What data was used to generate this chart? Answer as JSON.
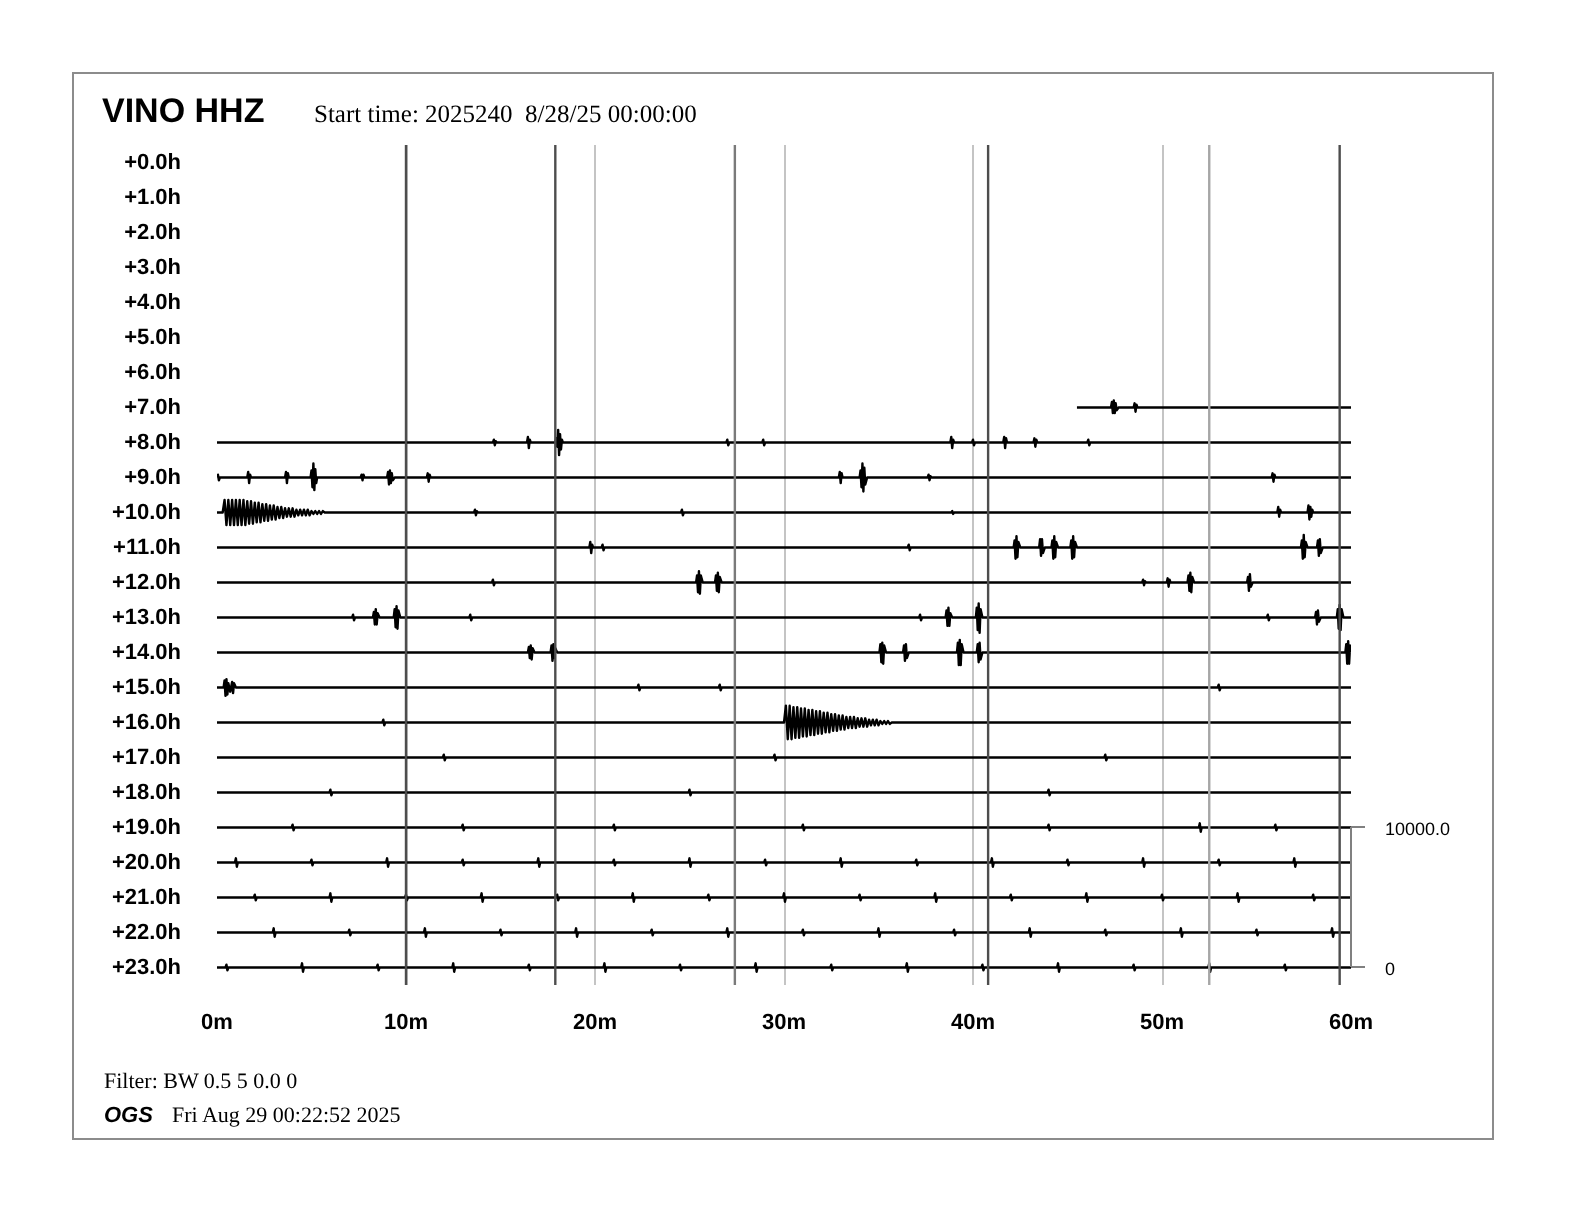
{
  "chart_data": {
    "type": "line",
    "title": "VINO HHZ",
    "subtitle": "Start time: 2025240  8/28/25 00:00:00",
    "annotations": [
      "Filter: BW 0.5 5 0.0 0",
      "OGS",
      "Fri Aug 29 00:22:52 2025"
    ],
    "xlim": [
      0,
      60
    ],
    "xticks": [
      {
        "value": 0,
        "label": "0m"
      },
      {
        "value": 10,
        "label": "10m"
      },
      {
        "value": 20,
        "label": "20m"
      },
      {
        "value": 30,
        "label": "30m"
      },
      {
        "value": 40,
        "label": "40m"
      },
      {
        "value": 50,
        "label": "50m"
      },
      {
        "value": 60,
        "label": "60m"
      }
    ],
    "ylim": [
      23.5,
      -0.5
    ],
    "yticks": [
      {
        "value": 0,
        "label": "+0.0h"
      },
      {
        "value": 1,
        "label": "+1.0h"
      },
      {
        "value": 2,
        "label": "+2.0h"
      },
      {
        "value": 3,
        "label": "+3.0h"
      },
      {
        "value": 4,
        "label": "+4.0h"
      },
      {
        "value": 5,
        "label": "+5.0h"
      },
      {
        "value": 6,
        "label": "+6.0h"
      },
      {
        "value": 7,
        "label": "+7.0h"
      },
      {
        "value": 8,
        "label": "+8.0h"
      },
      {
        "value": 9,
        "label": "+9.0h"
      },
      {
        "value": 10,
        "label": "+10.0h"
      },
      {
        "value": 11,
        "label": "+11.0h"
      },
      {
        "value": 12,
        "label": "+12.0h"
      },
      {
        "value": 13,
        "label": "+13.0h"
      },
      {
        "value": 14,
        "label": "+14.0h"
      },
      {
        "value": 15,
        "label": "+15.0h"
      },
      {
        "value": 16,
        "label": "+16.0h"
      },
      {
        "value": 17,
        "label": "+17.0h"
      },
      {
        "value": 18,
        "label": "+18.0h"
      },
      {
        "value": 19,
        "label": "+19.0h"
      },
      {
        "value": 20,
        "label": "+20.0h"
      },
      {
        "value": 21,
        "label": "+21.0h"
      },
      {
        "value": 22,
        "label": "+22.0h"
      },
      {
        "value": 23,
        "label": "+23.0h"
      }
    ],
    "y2lim": [
      -1250,
      58750
    ],
    "y2ticks": [
      0,
      {
        "value": 10000,
        "label": "10000.0"
      }
    ],
    "grid": "x",
    "line_style": "solid",
    "ref_lines": [
      {
        "axis": "x",
        "value": 10,
        "color": "#4d4d4d"
      },
      {
        "axis": "x",
        "value": 17.9,
        "color": "#4d4d4d"
      },
      {
        "axis": "x",
        "value": 27.4,
        "color": "#7a7a7a"
      },
      {
        "axis": "x",
        "value": 40.8,
        "color": "#4d4d4d"
      },
      {
        "axis": "x",
        "value": 52.5,
        "color": "#a6a6a6"
      },
      {
        "axis": "x",
        "value": 59.4,
        "color": "#4d4d4d"
      }
    ],
    "series": [
      {
        "color": "#000000",
        "axis": "y2",
        "x": [
          45.5,
          47.3,
          47.35,
          47.4,
          47.45,
          47.5,
          47.55,
          47.6,
          47.7,
          48.5,
          48.55,
          48.6,
          48.65,
          48.7,
          60
        ],
        "values": [
          40000,
          40000,
          40400,
          39600,
          40500,
          39600,
          40300,
          39800,
          40000,
          40000,
          40300,
          39700,
          40200,
          40000,
          40000
        ]
      },
      {
        "color": "#000000",
        "axis": "y2",
        "x": [
          0,
          14.6,
          14.65,
          14.7,
          14.75,
          14.8,
          16.4,
          16.45,
          16.5,
          16.55,
          16.6,
          17.9,
          17.95,
          18.0,
          18.05,
          18.1,
          18.15,
          18.2,
          18.25,
          18.3,
          26.95,
          27.0,
          27.05,
          27.1,
          28.85,
          28.9,
          28.95,
          29.0,
          38.8,
          38.85,
          38.9,
          38.95,
          39.0,
          39.95,
          40.0,
          40.05,
          40.1,
          41.6,
          41.65,
          41.7,
          41.75,
          41.8,
          43.2,
          43.25,
          43.3,
          43.35,
          43.4,
          46.05,
          46.1,
          46.15,
          46.2,
          60
        ],
        "values": [
          37500,
          37500,
          37700,
          37300,
          37600,
          37500,
          37500,
          37900,
          37100,
          37700,
          37500,
          37500,
          37800,
          37200,
          38400,
          36600,
          38100,
          37000,
          37700,
          37500,
          37500,
          37700,
          37300,
          37500,
          37500,
          37700,
          37300,
          37500,
          37500,
          37900,
          37100,
          37700,
          37500,
          37500,
          37700,
          37300,
          37500,
          37500,
          37900,
          37100,
          37800,
          37500,
          37500,
          37800,
          37200,
          37700,
          37500,
          37500,
          37700,
          37300,
          37500,
          37500
        ]
      },
      {
        "color": "#000000",
        "axis": "y2",
        "x": [
          0,
          0.05,
          0.1,
          0.15,
          1.6,
          1.65,
          1.7,
          1.75,
          1.8,
          3.6,
          3.65,
          3.7,
          3.75,
          3.8,
          4.95,
          5.0,
          5.05,
          5.1,
          5.15,
          5.2,
          5.25,
          5.3,
          7.6,
          7.65,
          7.7,
          7.75,
          7.8,
          9.0,
          9.05,
          9.1,
          9.15,
          9.2,
          9.25,
          9.3,
          9.4,
          11.1,
          11.15,
          11.2,
          11.25,
          11.3,
          32.9,
          32.95,
          33.0,
          33.05,
          33.1,
          34.0,
          34.05,
          34.1,
          34.15,
          34.2,
          34.25,
          34.3,
          34.4,
          37.6,
          37.65,
          37.7,
          37.75,
          37.8,
          55.8,
          55.85,
          55.9,
          55.95,
          56.0,
          60
        ],
        "values": [
          35000,
          35200,
          34800,
          35000,
          35000,
          35400,
          34600,
          35200,
          35000,
          35000,
          35400,
          34600,
          35300,
          35000,
          35000,
          35500,
          34300,
          36000,
          34100,
          35600,
          34600,
          35000,
          35000,
          35200,
          34800,
          35200,
          35000,
          35000,
          35400,
          34500,
          35500,
          34600,
          35300,
          34800,
          35000,
          35000,
          35300,
          34700,
          35200,
          35000,
          35000,
          35400,
          34600,
          35300,
          35000,
          35000,
          35500,
          34300,
          36000,
          34000,
          35700,
          34500,
          35000,
          35000,
          35200,
          34800,
          35100,
          35000,
          35000,
          35300,
          34700,
          35200,
          35000,
          35000
        ]
      },
      {
        "color": "#000000",
        "axis": "y2",
        "x": [
          0,
          0.3,
          0.4,
          0.5,
          0.6,
          0.7,
          0.8,
          0.9,
          1.0,
          1.1,
          1.2,
          1.3,
          1.4,
          1.5,
          1.6,
          1.7,
          1.8,
          1.9,
          2.0,
          2.1,
          2.2,
          2.3,
          2.4,
          2.5,
          2.6,
          2.7,
          2.8,
          2.9,
          3.0,
          3.1,
          3.2,
          3.3,
          3.4,
          3.5,
          3.6,
          3.7,
          3.8,
          3.9,
          4.0,
          4.1,
          4.2,
          4.3,
          4.4,
          4.5,
          4.6,
          4.7,
          4.8,
          4.9,
          5.0,
          5.1,
          5.2,
          5.3,
          5.4,
          5.5,
          5.6,
          5.7,
          13.6,
          13.65,
          13.7,
          13.75,
          13.8,
          24.55,
          24.6,
          24.65,
          24.7,
          38.85,
          38.9,
          38.95,
          39.0,
          56.1,
          56.15,
          56.2,
          56.25,
          56.3,
          57.7,
          57.75,
          57.8,
          57.85,
          57.9,
          57.95,
          58.0,
          60
        ],
        "values": [
          32500,
          32500,
          33400,
          31600,
          33400,
          31600,
          33400,
          31600,
          33400,
          31600,
          33400,
          31600,
          33400,
          31600,
          33300,
          31700,
          33300,
          31700,
          33200,
          31800,
          33200,
          31800,
          33100,
          31900,
          33100,
          31900,
          33000,
          32000,
          33000,
          32000,
          32900,
          32100,
          32900,
          32100,
          32800,
          32200,
          32800,
          32200,
          32800,
          32200,
          32700,
          32300,
          32700,
          32300,
          32700,
          32300,
          32700,
          32300,
          32600,
          32400,
          32600,
          32400,
          32600,
          32400,
          32600,
          32500,
          32500,
          32700,
          32300,
          32600,
          32500,
          32500,
          32700,
          32300,
          32500,
          32500,
          32600,
          32400,
          32500,
          32500,
          32900,
          32200,
          32700,
          32500,
          32500,
          33000,
          32000,
          32900,
          32200,
          32700,
          32500,
          32500
        ]
      },
      {
        "color": "#000000",
        "axis": "y2",
        "x": [
          0,
          19.7,
          19.75,
          19.8,
          19.85,
          19.9,
          20.35,
          20.4,
          20.45,
          20.5,
          36.55,
          36.6,
          36.65,
          36.7,
          42.15,
          42.2,
          42.25,
          42.3,
          42.35,
          42.4,
          42.5,
          43.5,
          43.55,
          43.6,
          43.65,
          43.7,
          43.8,
          44.15,
          44.2,
          44.25,
          44.3,
          44.35,
          44.4,
          44.5,
          45.15,
          45.2,
          45.25,
          45.3,
          45.35,
          45.4,
          45.5,
          57.35,
          57.4,
          57.45,
          57.5,
          57.55,
          57.6,
          57.7,
          58.2,
          58.25,
          58.3,
          58.35,
          58.4,
          58.5,
          60
        ],
        "values": [
          30000,
          30000,
          30400,
          29600,
          30200,
          30000,
          30000,
          30200,
          29800,
          30000,
          30000,
          30200,
          29800,
          30000,
          30000,
          30500,
          29200,
          30800,
          29300,
          30400,
          30000,
          30000,
          30600,
          29400,
          30600,
          29600,
          30000,
          30000,
          30500,
          29200,
          30800,
          29300,
          30400,
          30000,
          30000,
          30500,
          29200,
          30800,
          29300,
          30400,
          30000,
          30000,
          30500,
          29200,
          30900,
          29300,
          30400,
          30000,
          30000,
          30500,
          29400,
          30600,
          29600,
          30000,
          30000
        ]
      },
      {
        "color": "#000000",
        "axis": "y2",
        "x": [
          0,
          14.55,
          14.6,
          14.65,
          14.7,
          25.35,
          25.4,
          25.45,
          25.5,
          25.55,
          25.6,
          25.7,
          26.35,
          26.4,
          26.45,
          26.5,
          26.55,
          26.6,
          26.7,
          48.95,
          49.0,
          49.05,
          49.1,
          49.15,
          50.25,
          50.3,
          50.35,
          50.4,
          50.45,
          51.35,
          51.4,
          51.45,
          51.5,
          51.55,
          51.6,
          51.7,
          54.5,
          54.55,
          54.6,
          54.65,
          54.7,
          54.8,
          60
        ],
        "values": [
          27500,
          27500,
          27700,
          27300,
          27500,
          27500,
          28000,
          26800,
          28300,
          26700,
          28000,
          27500,
          27500,
          28000,
          26900,
          28200,
          26800,
          27900,
          27500,
          27500,
          27700,
          27300,
          27600,
          27500,
          27500,
          27800,
          27200,
          27700,
          27500,
          27500,
          28000,
          26900,
          28200,
          26800,
          27900,
          27500,
          27500,
          27900,
          26900,
          28100,
          27200,
          27500,
          27500
        ]
      },
      {
        "color": "#000000",
        "axis": "y2",
        "x": [
          0,
          7.15,
          7.2,
          7.25,
          7.3,
          8.25,
          8.3,
          8.35,
          8.4,
          8.45,
          8.5,
          8.6,
          9.35,
          9.4,
          9.45,
          9.5,
          9.55,
          9.6,
          9.7,
          13.35,
          13.4,
          13.45,
          13.5,
          37.15,
          37.2,
          37.25,
          37.3,
          38.55,
          38.6,
          38.65,
          38.7,
          38.75,
          38.8,
          38.9,
          40.15,
          40.2,
          40.25,
          40.3,
          40.35,
          40.4,
          40.5,
          55.55,
          55.6,
          55.65,
          55.7,
          58.1,
          58.15,
          58.2,
          58.25,
          58.3,
          58.4,
          59.25,
          59.3,
          59.35,
          59.4,
          59.45,
          59.5,
          59.6,
          60
        ],
        "values": [
          25000,
          25000,
          25200,
          24800,
          25000,
          25000,
          25400,
          24500,
          25600,
          24500,
          25300,
          25000,
          25000,
          25600,
          24300,
          25800,
          24200,
          25500,
          25000,
          25000,
          25200,
          24800,
          25000,
          25000,
          25200,
          24800,
          25000,
          25000,
          25500,
          24400,
          25700,
          24400,
          25300,
          25000,
          25000,
          25700,
          24100,
          26000,
          23900,
          25600,
          25000,
          25000,
          25200,
          24800,
          25000,
          25000,
          25400,
          24500,
          25500,
          24700,
          25000,
          25000,
          25600,
          24200,
          25900,
          24100,
          25600,
          25000,
          25000
        ]
      },
      {
        "color": "#000000",
        "axis": "y2",
        "x": [
          0,
          16.45,
          16.5,
          16.55,
          16.6,
          16.65,
          16.7,
          16.8,
          17.65,
          17.7,
          17.75,
          17.8,
          17.85,
          17.9,
          18.0,
          35.05,
          35.1,
          35.15,
          35.2,
          35.25,
          35.3,
          35.4,
          36.3,
          36.35,
          36.4,
          36.45,
          36.5,
          36.6,
          39.15,
          39.2,
          39.25,
          39.3,
          39.35,
          39.4,
          39.5,
          40.2,
          40.25,
          40.3,
          40.35,
          40.4,
          40.5,
          59.7,
          59.75,
          59.8,
          59.85,
          59.9,
          59.95,
          60
        ],
        "values": [
          22500,
          22500,
          22900,
          22100,
          23000,
          22000,
          22800,
          22500,
          22500,
          23000,
          21900,
          23100,
          22100,
          22800,
          22500,
          22500,
          23100,
          21800,
          23200,
          21700,
          23000,
          22500,
          22500,
          23000,
          21900,
          23100,
          22100,
          22500,
          22500,
          23200,
          21600,
          23400,
          21600,
          23100,
          22500,
          22500,
          23100,
          21800,
          23200,
          22000,
          22500,
          22500,
          23100,
          21700,
          23300,
          21700,
          23000,
          22500
        ]
      },
      {
        "color": "#000000",
        "axis": "y2",
        "x": [
          0,
          0.35,
          0.4,
          0.45,
          0.5,
          0.55,
          0.6,
          0.7,
          0.8,
          0.85,
          0.9,
          1.0,
          22.25,
          22.3,
          22.35,
          22.4,
          26.55,
          26.6,
          26.65,
          26.7,
          52.95,
          53.0,
          53.05,
          53.1,
          60
        ],
        "values": [
          20000,
          20000,
          20500,
          19400,
          20600,
          19500,
          20300,
          19700,
          20400,
          19600,
          20300,
          20000,
          20000,
          20200,
          19800,
          20000,
          20000,
          20200,
          19800,
          20000,
          20000,
          20200,
          19800,
          20000,
          20000
        ]
      },
      {
        "color": "#000000",
        "axis": "y2",
        "x": [
          0,
          8.75,
          8.8,
          8.85,
          8.9,
          30.0,
          30.1,
          30.2,
          30.3,
          30.4,
          30.5,
          30.6,
          30.7,
          30.8,
          30.9,
          31.0,
          31.1,
          31.2,
          31.3,
          31.4,
          31.5,
          31.6,
          31.7,
          31.8,
          31.9,
          32.0,
          32.1,
          32.2,
          32.3,
          32.4,
          32.5,
          32.6,
          32.7,
          32.8,
          32.9,
          33.0,
          33.1,
          33.2,
          33.3,
          33.4,
          33.5,
          33.6,
          33.7,
          33.8,
          33.9,
          34.0,
          34.1,
          34.2,
          34.3,
          34.4,
          34.5,
          34.6,
          34.7,
          34.8,
          34.9,
          35.0,
          35.1,
          35.2,
          35.3,
          35.4,
          35.5,
          35.6,
          35.7,
          60
        ],
        "values": [
          17500,
          17500,
          17700,
          17300,
          17500,
          17500,
          18700,
          16300,
          18700,
          16300,
          18600,
          16400,
          18600,
          16400,
          18500,
          16500,
          18500,
          16500,
          18400,
          16600,
          18400,
          16600,
          18300,
          16700,
          18300,
          16700,
          18200,
          16800,
          18200,
          16800,
          18100,
          16900,
          18100,
          16900,
          18000,
          17000,
          18000,
          17000,
          17900,
          17100,
          17900,
          17100,
          17900,
          17100,
          17800,
          17200,
          17800,
          17200,
          17800,
          17200,
          17700,
          17300,
          17700,
          17300,
          17700,
          17300,
          17600,
          17400,
          17600,
          17400,
          17600,
          17400,
          17500,
          17500
        ]
      },
      {
        "color": "#000000",
        "axis": "y2",
        "x": [
          0,
          11.95,
          12,
          12.05,
          12.1,
          29.45,
          29.5,
          29.55,
          29.6,
          46.95,
          47,
          47.05,
          47.1,
          60
        ],
        "values": [
          15000,
          15000,
          15200,
          14800,
          15000,
          15000,
          15200,
          14800,
          15000,
          15000,
          15200,
          14800,
          15000,
          15000
        ]
      },
      {
        "color": "#000000",
        "axis": "y2",
        "x": [
          0,
          5.95,
          6,
          6.05,
          6.1,
          24.95,
          25,
          25.05,
          25.1,
          43.95,
          44,
          44.05,
          44.1,
          60
        ],
        "values": [
          12500,
          12500,
          12700,
          12300,
          12500,
          12500,
          12700,
          12300,
          12500,
          12500,
          12700,
          12300,
          12500,
          12500
        ]
      },
      {
        "color": "#000000",
        "axis": "y2",
        "x": [
          0,
          3.95,
          4,
          4.05,
          4.1,
          12.95,
          13,
          13.05,
          13.1,
          20.95,
          21,
          21.05,
          21.1,
          30.95,
          31,
          31.05,
          31.1,
          43.95,
          44,
          44.05,
          44.1,
          51.95,
          52,
          52.05,
          52.1,
          55.95,
          56,
          56.05,
          56.1,
          60
        ],
        "values": [
          10000,
          10000,
          10200,
          9800,
          10000,
          10000,
          10200,
          9800,
          10000,
          10000,
          10200,
          9800,
          10000,
          10000,
          10200,
          9800,
          10000,
          10000,
          10200,
          9800,
          10000,
          10000,
          10300,
          9700,
          10000,
          10000,
          10200,
          9800,
          10000,
          10000
        ]
      },
      {
        "color": "#000000",
        "axis": "y2",
        "x": [
          0,
          0.95,
          1,
          1.05,
          1.1,
          4.95,
          5,
          5.05,
          5.1,
          8.95,
          9,
          9.05,
          9.1,
          12.95,
          13,
          13.05,
          13.1,
          16.95,
          17,
          17.05,
          17.1,
          20.95,
          21,
          21.05,
          21.1,
          24.95,
          25,
          25.05,
          25.1,
          28.95,
          29,
          29.05,
          29.1,
          32.95,
          33,
          33.05,
          33.1,
          36.95,
          37,
          37.05,
          37.1,
          40.95,
          41,
          41.05,
          41.1,
          44.95,
          45,
          45.05,
          45.1,
          48.95,
          49,
          49.05,
          49.1,
          52.95,
          53,
          53.05,
          53.1,
          56.95,
          57,
          57.05,
          57.1,
          60
        ],
        "values": [
          7500,
          7500,
          7800,
          7200,
          7500,
          7500,
          7700,
          7300,
          7500,
          7500,
          7800,
          7200,
          7500,
          7500,
          7700,
          7300,
          7500,
          7500,
          7800,
          7200,
          7500,
          7500,
          7700,
          7300,
          7500,
          7500,
          7800,
          7200,
          7500,
          7500,
          7700,
          7300,
          7500,
          7500,
          7800,
          7200,
          7500,
          7500,
          7700,
          7300,
          7500,
          7500,
          7800,
          7200,
          7500,
          7500,
          7700,
          7300,
          7500,
          7500,
          7800,
          7200,
          7500,
          7500,
          7700,
          7300,
          7500,
          7500,
          7800,
          7200,
          7500,
          7500
        ]
      },
      {
        "color": "#000000",
        "axis": "y2",
        "x": [
          0,
          1.95,
          2,
          2.05,
          2.1,
          5.95,
          6,
          6.05,
          6.1,
          9.95,
          10,
          10.05,
          10.1,
          13.95,
          14,
          14.05,
          14.1,
          17.95,
          18,
          18.05,
          18.1,
          21.95,
          22,
          22.05,
          22.1,
          25.95,
          26,
          26.05,
          26.1,
          29.95,
          30,
          30.05,
          30.1,
          33.95,
          34,
          34.05,
          34.1,
          37.95,
          38,
          38.05,
          38.1,
          41.95,
          42,
          42.05,
          42.1,
          45.95,
          46,
          46.05,
          46.1,
          49.95,
          50,
          50.05,
          50.1,
          53.95,
          54,
          54.05,
          54.1,
          57.95,
          58,
          58.05,
          58.1,
          60
        ],
        "values": [
          5000,
          5000,
          5200,
          4800,
          5000,
          5000,
          5300,
          4700,
          5000,
          5000,
          5200,
          4800,
          5000,
          5000,
          5300,
          4700,
          5000,
          5000,
          5200,
          4800,
          5000,
          5000,
          5300,
          4700,
          5000,
          5000,
          5200,
          4800,
          5000,
          5000,
          5300,
          4700,
          5000,
          5000,
          5200,
          4800,
          5000,
          5000,
          5300,
          4700,
          5000,
          5000,
          5200,
          4800,
          5000,
          5000,
          5300,
          4700,
          5000,
          5000,
          5200,
          4800,
          5000,
          5000,
          5300,
          4700,
          5000,
          5000,
          5200,
          4800,
          5000,
          5000
        ]
      },
      {
        "color": "#000000",
        "axis": "y2",
        "x": [
          0,
          2.95,
          3,
          3.05,
          3.1,
          6.95,
          7,
          7.05,
          7.1,
          10.95,
          11,
          11.05,
          11.1,
          14.95,
          15,
          15.05,
          15.1,
          18.95,
          19,
          19.05,
          19.1,
          22.95,
          23,
          23.05,
          23.1,
          26.95,
          27,
          27.05,
          27.1,
          30.95,
          31,
          31.05,
          31.1,
          34.95,
          35,
          35.05,
          35.1,
          38.95,
          39,
          39.05,
          39.1,
          42.95,
          43,
          43.05,
          43.1,
          46.95,
          47,
          47.05,
          47.1,
          50.95,
          51,
          51.05,
          51.1,
          54.95,
          55,
          55.05,
          55.1,
          58.95,
          59,
          59.05,
          59.1,
          60
        ],
        "values": [
          2500,
          2500,
          2800,
          2200,
          2500,
          2500,
          2700,
          2300,
          2500,
          2500,
          2800,
          2200,
          2500,
          2500,
          2700,
          2300,
          2500,
          2500,
          2800,
          2200,
          2500,
          2500,
          2700,
          2300,
          2500,
          2500,
          2800,
          2200,
          2500,
          2500,
          2700,
          2300,
          2500,
          2500,
          2800,
          2200,
          2500,
          2500,
          2700,
          2300,
          2500,
          2500,
          2800,
          2200,
          2500,
          2500,
          2700,
          2300,
          2500,
          2500,
          2800,
          2200,
          2500,
          2500,
          2700,
          2300,
          2500,
          2500,
          2800,
          2200,
          2500,
          2500
        ]
      },
      {
        "color": "#000000",
        "axis": "y2",
        "x": [
          0,
          0.45,
          0.5,
          0.55,
          0.6,
          4.45,
          4.5,
          4.55,
          4.6,
          8.45,
          8.5,
          8.55,
          8.6,
          12.45,
          12.5,
          12.55,
          12.6,
          16.45,
          16.5,
          16.55,
          16.6,
          20.45,
          20.5,
          20.55,
          20.6,
          24.45,
          24.5,
          24.55,
          24.6,
          28.45,
          28.5,
          28.55,
          28.6,
          32.45,
          32.5,
          32.55,
          32.6,
          36.45,
          36.5,
          36.55,
          36.6,
          40.45,
          40.5,
          40.55,
          40.6,
          44.45,
          44.5,
          44.55,
          44.6,
          48.45,
          48.5,
          48.55,
          48.6,
          52.45,
          52.5,
          52.55,
          52.6,
          56.45,
          56.5,
          56.55,
          56.6,
          60
        ],
        "values": [
          0,
          0,
          200,
          -200,
          0,
          0,
          300,
          -300,
          0,
          0,
          200,
          -200,
          0,
          0,
          300,
          -300,
          0,
          0,
          200,
          -200,
          0,
          0,
          300,
          -300,
          0,
          0,
          200,
          -200,
          0,
          0,
          300,
          -300,
          0,
          0,
          200,
          -200,
          0,
          0,
          300,
          -300,
          0,
          0,
          200,
          -200,
          0,
          0,
          300,
          -300,
          0,
          0,
          200,
          -200,
          0,
          0,
          300,
          -300,
          0,
          0,
          200,
          -200,
          0,
          0
        ]
      }
    ]
  }
}
